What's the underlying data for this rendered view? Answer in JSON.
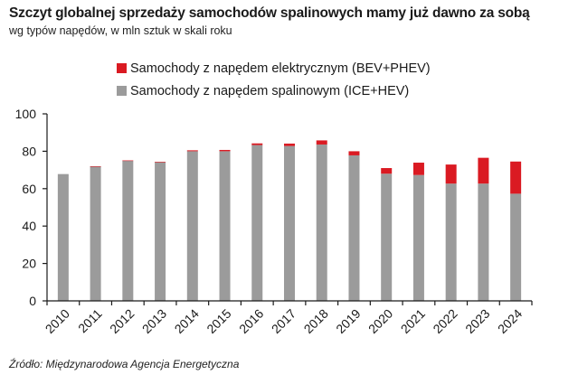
{
  "chart_data": {
    "type": "bar",
    "stacked": true,
    "title": "Szczyt globalnej sprzedaży samochodów spalinowych mamy już dawno za sobą",
    "subtitle": "wg typów napędów, w mln sztuk w skali roku",
    "xlabel": "",
    "ylabel": "",
    "ylim": [
      0,
      100
    ],
    "yticks": [
      "0",
      "20",
      "40",
      "60",
      "80",
      "100"
    ],
    "ytick_values": [
      0,
      20,
      40,
      60,
      80,
      100
    ],
    "categories": [
      "2010",
      "2011",
      "2012",
      "2013",
      "2014",
      "2015",
      "2016",
      "2017",
      "2018",
      "2019",
      "2020",
      "2021",
      "2022",
      "2023",
      "2024"
    ],
    "series": [
      {
        "name": "Samochody z napędem spalinowym (ICE+HEV)",
        "color": "#9b9b9b",
        "values": [
          67.8,
          71.9,
          74.9,
          74.1,
          80.0,
          80.0,
          83.3,
          82.8,
          83.6,
          77.8,
          68.0,
          67.3,
          62.7,
          62.7,
          57.3
        ]
      },
      {
        "name": "Samochody z napędem elektrycznym (BEV+PHEV)",
        "color": "#da1a22",
        "values": [
          0.0,
          0.1,
          0.2,
          0.3,
          0.5,
          0.7,
          0.9,
          1.3,
          2.2,
          2.2,
          3.0,
          6.6,
          10.2,
          13.8,
          17.2
        ]
      }
    ],
    "legend": {
      "position": "top-left",
      "entries": [
        "Samochody z napędem elektrycznym (BEV+PHEV)",
        "Samochody z napędem spalinowym (ICE+HEV)"
      ]
    },
    "grid": false
  },
  "source": "Źródło: Międzynarodowa Agencja Energetyczna"
}
